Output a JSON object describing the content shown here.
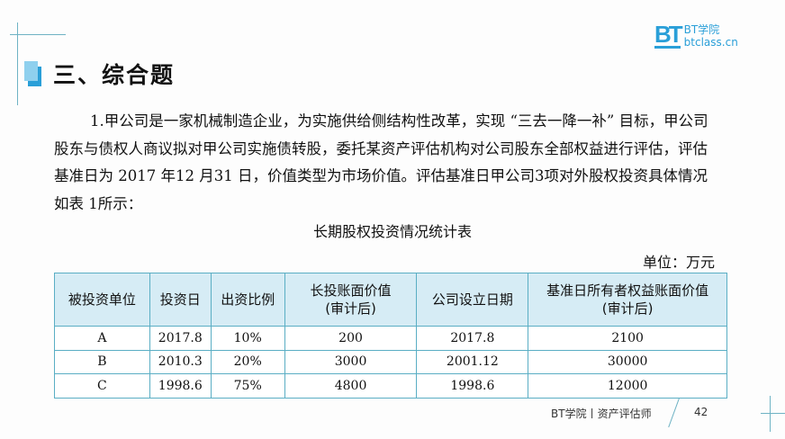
{
  "logo": {
    "mark": "BT",
    "line1": "BT学院",
    "line2": "btclass.cn"
  },
  "heading": "三、综合题",
  "paragraph": "1.甲公司是一家机械制造企业，为实施供给侧结构性改革，实现 “三去一降一补” 目标，甲公司股东与债权人商议拟对甲公司实施债转股，委托某资产评估机构对公司股东全部权益进行评估，评估基准日为 2017 年12 月31 日，价值类型为市场价值。评估基准日甲公司3项对外股权投资具体情况如表 1所示：",
  "table_title": "长期股权投资情况统计表",
  "unit": "单位：万元",
  "table": {
    "headers": [
      "被投资单位",
      "投资日",
      "出资比例",
      "长投账面价值\n(审计后)",
      "公司设立日期",
      "基准日所有者权益账面价值\n(审计后)"
    ],
    "rows": [
      [
        "A",
        "2017.8",
        "10%",
        "200",
        "2017.8",
        "2100"
      ],
      [
        "B",
        "2010.3",
        "20%",
        "3000",
        "2001.12",
        "30000"
      ],
      [
        "C",
        "1998.6",
        "75%",
        "4800",
        "1998.6",
        "12000"
      ]
    ]
  },
  "footer": {
    "text": "BT学院丨资产评估师",
    "page": "42"
  }
}
